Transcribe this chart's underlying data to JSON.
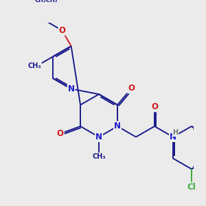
{
  "bg_color": "#ebebeb",
  "bond_color": "#1a1a8c",
  "bond_width": 1.4,
  "atom_colors": {
    "N": "#1a1acc",
    "O": "#cc1a1a",
    "Cl": "#3aaa3a",
    "H": "#777777",
    "C": "#1a1a8c"
  },
  "font_size": 8.5,
  "figsize": [
    3.0,
    3.0
  ],
  "dpi": 100
}
